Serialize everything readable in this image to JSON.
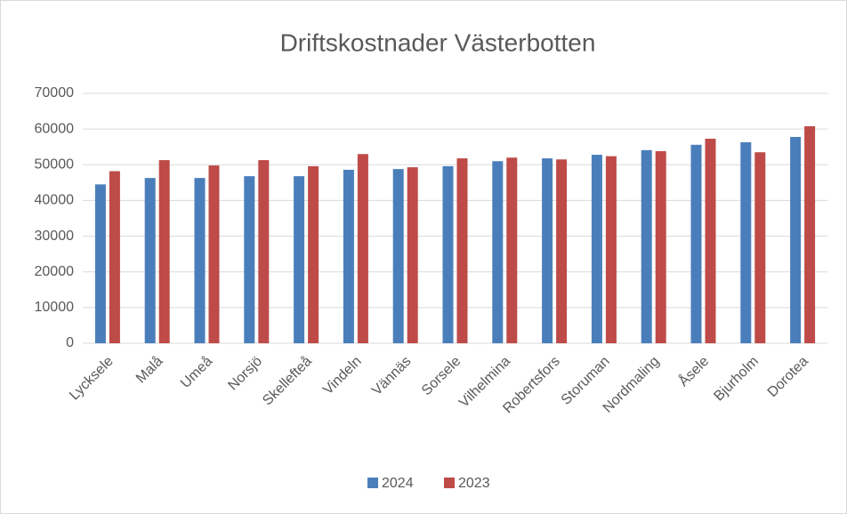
{
  "chart_data": {
    "type": "bar",
    "title": "Driftskostnader Västerbotten",
    "categories": [
      "Lycksele",
      "Malå",
      "Umeå",
      "Norsjö",
      "Skellefteå",
      "Vindeln",
      "Vännäs",
      "Sorsele",
      "Vilhelmina",
      "Robertsfors",
      "Storuman",
      "Nordmaling",
      "Åsele",
      "Bjurholm",
      "Dorotea"
    ],
    "series": [
      {
        "name": "2024",
        "color": "#4a7ebb",
        "values": [
          44500,
          46300,
          46300,
          46800,
          46800,
          48600,
          48800,
          49600,
          51000,
          51800,
          52800,
          54100,
          55600,
          56300,
          57800
        ]
      },
      {
        "name": "2023",
        "color": "#be4b48",
        "values": [
          48200,
          51300,
          49800,
          51300,
          49600,
          53000,
          49300,
          51800,
          52000,
          51500,
          52400,
          53800,
          57300,
          53500,
          60800
        ]
      }
    ],
    "ylim": [
      0,
      70000
    ],
    "yticks": [
      0,
      10000,
      20000,
      30000,
      40000,
      50000,
      60000,
      70000
    ],
    "grid": true,
    "legend": "bottom"
  }
}
